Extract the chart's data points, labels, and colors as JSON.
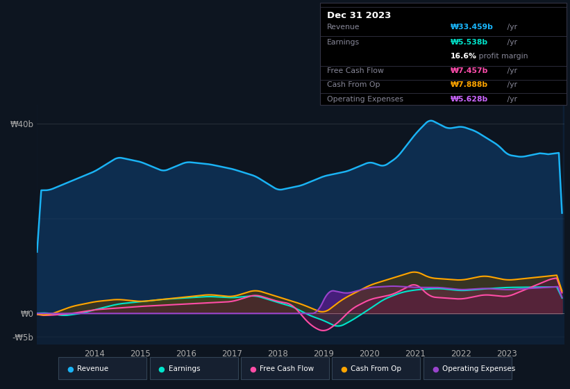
{
  "bg_color": "#0d1520",
  "plot_bg_color": "#0d1f35",
  "fig_size": [
    8.21,
    5.6
  ],
  "dpi": 100,
  "title": "Dec 31 2023",
  "info_box": {
    "Revenue": {
      "label": "Revenue",
      "value": "₩33.459b",
      "unit": " /yr",
      "color": "#1ab8ff"
    },
    "Earnings": {
      "label": "Earnings",
      "value": "₩5.538b",
      "unit": " /yr",
      "color": "#00e5cc"
    },
    "profit_margin": {
      "pct": "16.6%",
      "text": " profit margin"
    },
    "Free Cash Flow": {
      "label": "Free Cash Flow",
      "value": "₩7.457b",
      "unit": " /yr",
      "color": "#ff4dac"
    },
    "Cash From Op": {
      "label": "Cash From Op",
      "value": "₩7.888b",
      "unit": " /yr",
      "color": "#ffa500"
    },
    "Operating Expenses": {
      "label": "Operating Expenses",
      "value": "₩5.628b",
      "unit": " /yr",
      "color": "#cc66ff"
    }
  },
  "colors": {
    "revenue": "#1ab3f5",
    "revenue_fill": "#1a3a5c",
    "earnings": "#00e5cc",
    "earnings_fill": "#1a4a40",
    "free_cash_flow": "#ff4da6",
    "cash_from_op": "#ffa500",
    "operating_expenses": "#9944cc"
  },
  "ylim": [
    -6.5,
    44
  ],
  "yticks": [
    -5,
    0,
    40
  ],
  "ytick_labels": [
    "-₩5b",
    "₩0",
    "₩40b"
  ],
  "xlabel_years": [
    2014,
    2015,
    2016,
    2017,
    2018,
    2019,
    2020,
    2021,
    2022,
    2023
  ],
  "legend_items": [
    {
      "label": "Revenue",
      "color": "#1ab3f5"
    },
    {
      "label": "Earnings",
      "color": "#00e5cc"
    },
    {
      "label": "Free Cash Flow",
      "color": "#ff4da6"
    },
    {
      "label": "Cash From Op",
      "color": "#ffa500"
    },
    {
      "label": "Operating Expenses",
      "color": "#9944cc"
    }
  ]
}
